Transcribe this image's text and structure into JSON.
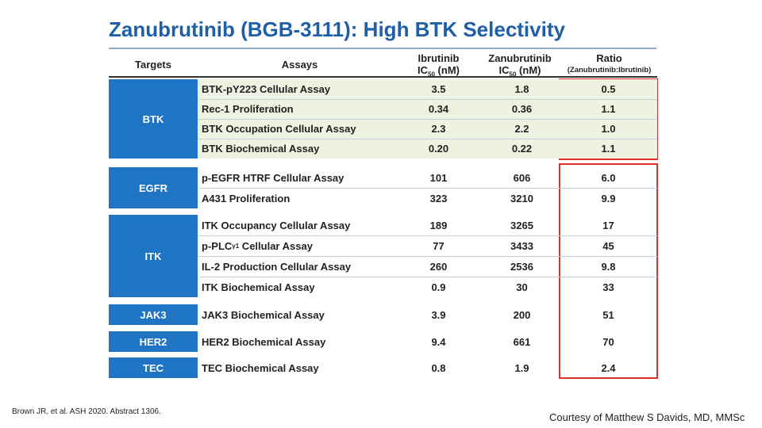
{
  "title": "Zanubrutinib (BGB-3111): High BTK Selectivity",
  "header": {
    "targets": "Targets",
    "assays": "Assays",
    "ibrutinib": {
      "name": "Ibrutinib",
      "ic": "IC",
      "sub": "50",
      "unit": "(nM)"
    },
    "zanubrutinib": {
      "name": "Zanubrutinib",
      "ic": "IC",
      "sub": "50",
      "unit": "(nM)"
    },
    "ratio": {
      "name": "Ratio",
      "note": "(Zanubrutinib:Ibrutinib)"
    }
  },
  "groups": [
    {
      "target": "BTK",
      "rows": [
        {
          "assay": "BTK-pY223 Cellular Assay",
          "ibrutinib": "3.5",
          "zanubrutinib": "1.8",
          "ratio": "0.5"
        },
        {
          "assay": "Rec-1 Proliferation",
          "ibrutinib": "0.34",
          "zanubrutinib": "0.36",
          "ratio": "1.1"
        },
        {
          "assay": "BTK Occupation Cellular Assay",
          "ibrutinib": "2.3",
          "zanubrutinib": "2.2",
          "ratio": "1.0"
        },
        {
          "assay": "BTK Biochemical Assay",
          "ibrutinib": "0.20",
          "zanubrutinib": "0.22",
          "ratio": "1.1"
        }
      ]
    },
    {
      "target": "EGFR",
      "rows": [
        {
          "assay": "p-EGFR HTRF Cellular Assay",
          "ibrutinib": "101",
          "zanubrutinib": "606",
          "ratio": "6.0"
        },
        {
          "assay": "A431 Proliferation",
          "ibrutinib": "323",
          "zanubrutinib": "3210",
          "ratio": "9.9"
        }
      ]
    },
    {
      "target": "ITK",
      "rows": [
        {
          "assay": "ITK Occupancy Cellular Assay",
          "ibrutinib": "189",
          "zanubrutinib": "3265",
          "ratio": "17"
        },
        {
          "assay": {
            "pre": "p-PLC",
            "sub": "γ1",
            "post": " Cellular Assay"
          },
          "ibrutinib": "77",
          "zanubrutinib": "3433",
          "ratio": "45"
        },
        {
          "assay": "IL-2 Production Cellular Assay",
          "ibrutinib": "260",
          "zanubrutinib": "2536",
          "ratio": "9.8"
        },
        {
          "assay": "ITK Biochemical Assay",
          "ibrutinib": "0.9",
          "zanubrutinib": "30",
          "ratio": "33"
        }
      ]
    },
    {
      "target": "JAK3",
      "rows": [
        {
          "assay": "JAK3 Biochemical Assay",
          "ibrutinib": "3.9",
          "zanubrutinib": "200",
          "ratio": "51"
        }
      ]
    },
    {
      "target": "HER2",
      "rows": [
        {
          "assay": "HER2 Biochemical Assay",
          "ibrutinib": "9.4",
          "zanubrutinib": "661",
          "ratio": "70"
        }
      ]
    },
    {
      "target": "TEC",
      "rows": [
        {
          "assay": "TEC Biochemical Assay",
          "ibrutinib": "0.8",
          "zanubrutinib": "1.9",
          "ratio": "2.4"
        }
      ]
    }
  ],
  "footnote": "Brown JR, et al. ASH 2020. Abstract 1306.",
  "credit": "Courtesy of Matthew S Davids, MD, MMSc"
}
